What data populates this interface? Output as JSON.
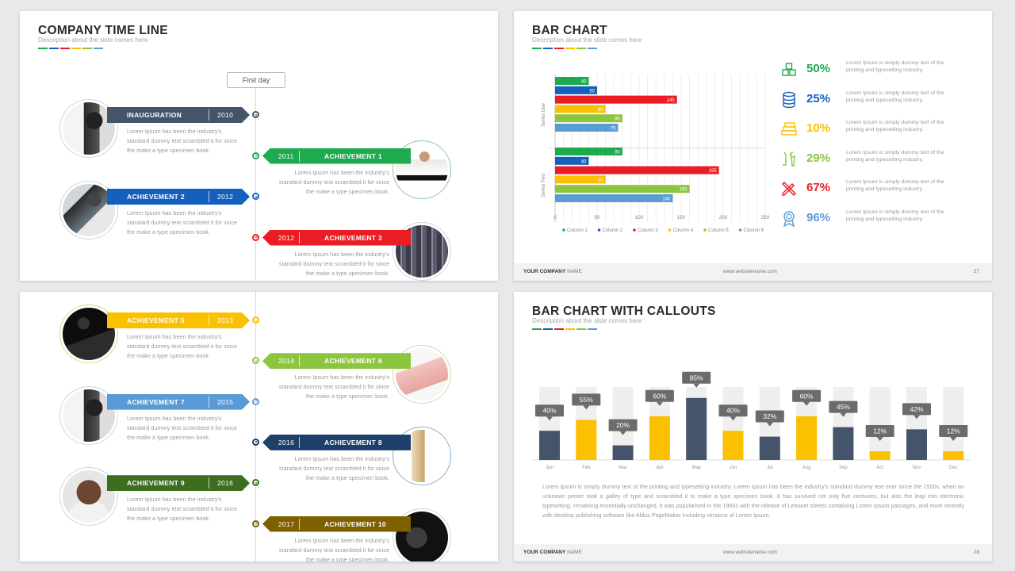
{
  "timeline": {
    "title": "COMPANY TIME LINE",
    "subtitle": "Description about the slide comes here",
    "first_day_label": "First day",
    "body_text": "Lorem Ipsum has been the industry's standard dummy text scrambled it for since the make a type specimen book.",
    "slide_top_items": [
      {
        "label": "INAUGURATION",
        "year": "2010",
        "color": "#44546a",
        "side": "left"
      },
      {
        "label": "ACHIEVEMENT 1",
        "year": "2011",
        "color": "#1eaa4f",
        "side": "right"
      },
      {
        "label": "ACHIEVEMENT 2",
        "year": "2012",
        "color": "#1560bd",
        "side": "left"
      },
      {
        "label": "ACHIEVEMENT 3",
        "year": "2012",
        "color": "#ea1c24",
        "side": "right"
      }
    ],
    "slide_bottom_items": [
      {
        "label": "ACHIEVEMENT 5",
        "year": "2013",
        "color": "#fbc000",
        "side": "left"
      },
      {
        "label": "ACHIEVEMENT 6",
        "year": "2014",
        "color": "#8cc63f",
        "side": "right"
      },
      {
        "label": "ACHIEVEMENT 7",
        "year": "2015",
        "color": "#5b9bd5",
        "side": "left"
      },
      {
        "label": "ACHIEVEMENT 8",
        "year": "2016",
        "color": "#1f3f6b",
        "side": "right"
      },
      {
        "label": "ACHIEVEMENT 9",
        "year": "2016",
        "color": "#3c6e1e",
        "side": "left"
      },
      {
        "label": "ACHIEVEMENT 10",
        "year": "2017",
        "color": "#7f6000",
        "side": "right"
      }
    ]
  },
  "brand_colors": [
    "#1eaa4f",
    "#1560bd",
    "#ea1c24",
    "#fbc000",
    "#8cc63f",
    "#5b9bd5"
  ],
  "bar_slide": {
    "title": "BAR CHART",
    "subtitle": "Description about the slide comes here",
    "footer_company_bold": "YOUR COMPANY",
    "footer_company_rest": "NAME",
    "footer_website": "www.websitename.com",
    "page_number": "27",
    "callouts": [
      {
        "icon": "cubes-icon",
        "pct": "50%",
        "color": "#1eaa4f"
      },
      {
        "icon": "database-icon",
        "pct": "25%",
        "color": "#1560bd"
      },
      {
        "icon": "money-stack-icon",
        "pct": "10%",
        "color": "#fbc000"
      },
      {
        "icon": "tools-icon",
        "pct": "29%",
        "color": "#8cc63f"
      },
      {
        "icon": "pencil-ruler-icon",
        "pct": "67%",
        "color": "#ea1c24"
      },
      {
        "icon": "award-icon",
        "pct": "96%",
        "color": "#5b9bd5"
      }
    ],
    "callout_text": "Lorem Ipsum is simply dummy text of the printing and typesetting industry."
  },
  "callout_slide": {
    "title": "BAR CHART WITH CALLOUTS",
    "subtitle": "Description about the slide comes here",
    "paragraph": "Lorem Ipsum is simply dummy text of the printing and typesetting industry. Lorem Ipsum has been the industry's standard dummy text ever since the 1500s, when an unknown printer took a galley of type and scrambled it to make a type specimen book. It has survived not only five centuries, but also the leap into electronic typesetting, remaining essentially unchanged. It was popularised in the 1960s with the release of Letraset sheets containing Lorem Ipsum passages, and more recently with desktop publishing software like Aldus PageMaker including versions of Lorem Ipsum.",
    "footer_company_bold": "YOUR COMPANY",
    "footer_company_rest": "NAME",
    "footer_website": "www.websitename.com",
    "page_number": "28"
  },
  "chart_data": [
    {
      "type": "bar",
      "orientation": "horizontal",
      "categories": [
        "Series One",
        "Series Two"
      ],
      "series": [
        {
          "name": "Column 1",
          "color": "#1eaa4f",
          "values": [
            40,
            80
          ]
        },
        {
          "name": "Column 2",
          "color": "#1560bd",
          "values": [
            50,
            40
          ]
        },
        {
          "name": "Column 3",
          "color": "#ea1c24",
          "values": [
            145,
            195
          ]
        },
        {
          "name": "Column 4",
          "color": "#fbc000",
          "values": [
            60,
            60
          ]
        },
        {
          "name": "Column 5",
          "color": "#8cc63f",
          "values": [
            80,
            160
          ]
        },
        {
          "name": "Column 6",
          "color": "#5b9bd5",
          "values": [
            75,
            140
          ]
        }
      ],
      "xlim": [
        0,
        250
      ],
      "xticks": [
        "0",
        "50",
        "100",
        "150",
        "200",
        "250"
      ],
      "grid": true,
      "legend": "bottom"
    },
    {
      "type": "bar",
      "categories": [
        "Jan",
        "Feb",
        "Mar",
        "Apr",
        "May",
        "Jun",
        "Jul",
        "Aug",
        "Sep",
        "Act",
        "Nov",
        "Dec"
      ],
      "values": [
        40,
        55,
        20,
        60,
        85,
        40,
        32,
        60,
        45,
        12,
        42,
        12
      ],
      "labels": [
        "40%",
        "55%",
        "20%",
        "60%",
        "85%",
        "40%",
        "32%",
        "60%",
        "45%",
        "12%",
        "42%",
        "12%"
      ],
      "colors": [
        "#44546a",
        "#fbc000",
        "#44546a",
        "#fbc000",
        "#44546a",
        "#fbc000",
        "#44546a",
        "#fbc000",
        "#44546a",
        "#fbc000",
        "#44546a",
        "#fbc000"
      ],
      "ylim": [
        0,
        100
      ]
    }
  ]
}
